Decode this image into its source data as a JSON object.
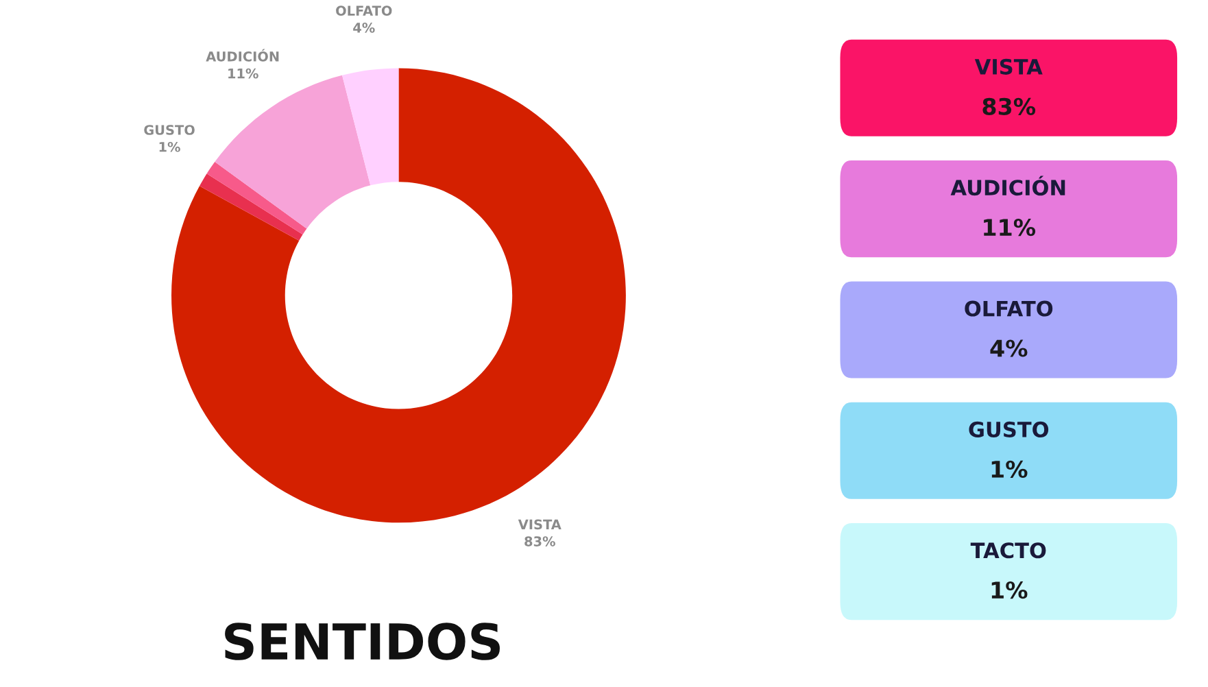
{
  "chart_data": [
    {
      "type": "donut",
      "title": "SENTIDOS",
      "categories": [
        "VISTA",
        null,
        "GUSTO",
        "AUDICIÓN",
        "OLFATO"
      ],
      "values": [
        83,
        1,
        1,
        11,
        4
      ],
      "colors": [
        "#d42000",
        "#e8304f",
        "#f75a8a",
        "#f7a3d8",
        "#ffd0ff"
      ],
      "value_labels": [
        "83%",
        null,
        "1%",
        "11%",
        "4%"
      ]
    },
    {
      "type": "other",
      "categories": [
        "VISTA",
        "AUDICIÓN",
        "OLFATO",
        "GUSTO",
        "TACTO"
      ],
      "value_labels": [
        "83%",
        "11%",
        "4%",
        "1%",
        "1%"
      ],
      "colors": [
        "#fa1467",
        "#e77adc",
        "#a9a9fb",
        "#8fdcf7",
        "#c8f8fb"
      ]
    }
  ]
}
